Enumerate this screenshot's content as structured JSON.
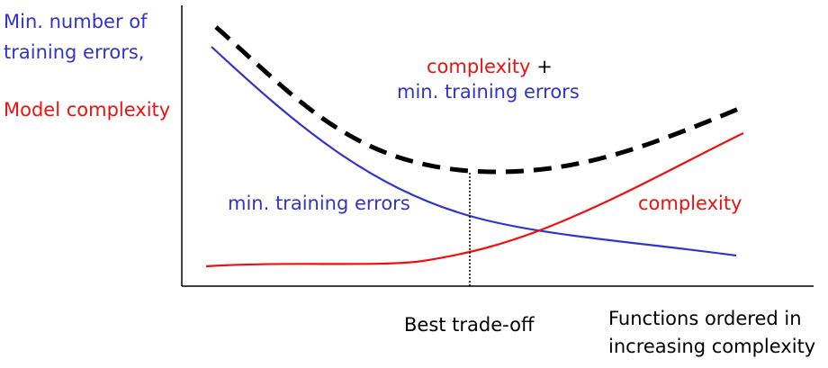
{
  "y_axis": {
    "label_line1": "Min. number of",
    "label_line2": "training errors,",
    "label_line3": "Model complexity"
  },
  "x_axis": {
    "label_line1": "Functions ordered in",
    "label_line2": "increasing complexity"
  },
  "annotations": {
    "sum_line1_red": "complexity",
    "sum_line1_plus": "+",
    "sum_line2_blue": "min. training errors",
    "training_errors": "min. training errors",
    "complexity": "complexity",
    "best_tradeoff": "Best trade-off"
  },
  "colors": {
    "training_errors": "#3333cc",
    "complexity": "#ee1111",
    "sum": "#000000",
    "axes": "#000000"
  }
}
